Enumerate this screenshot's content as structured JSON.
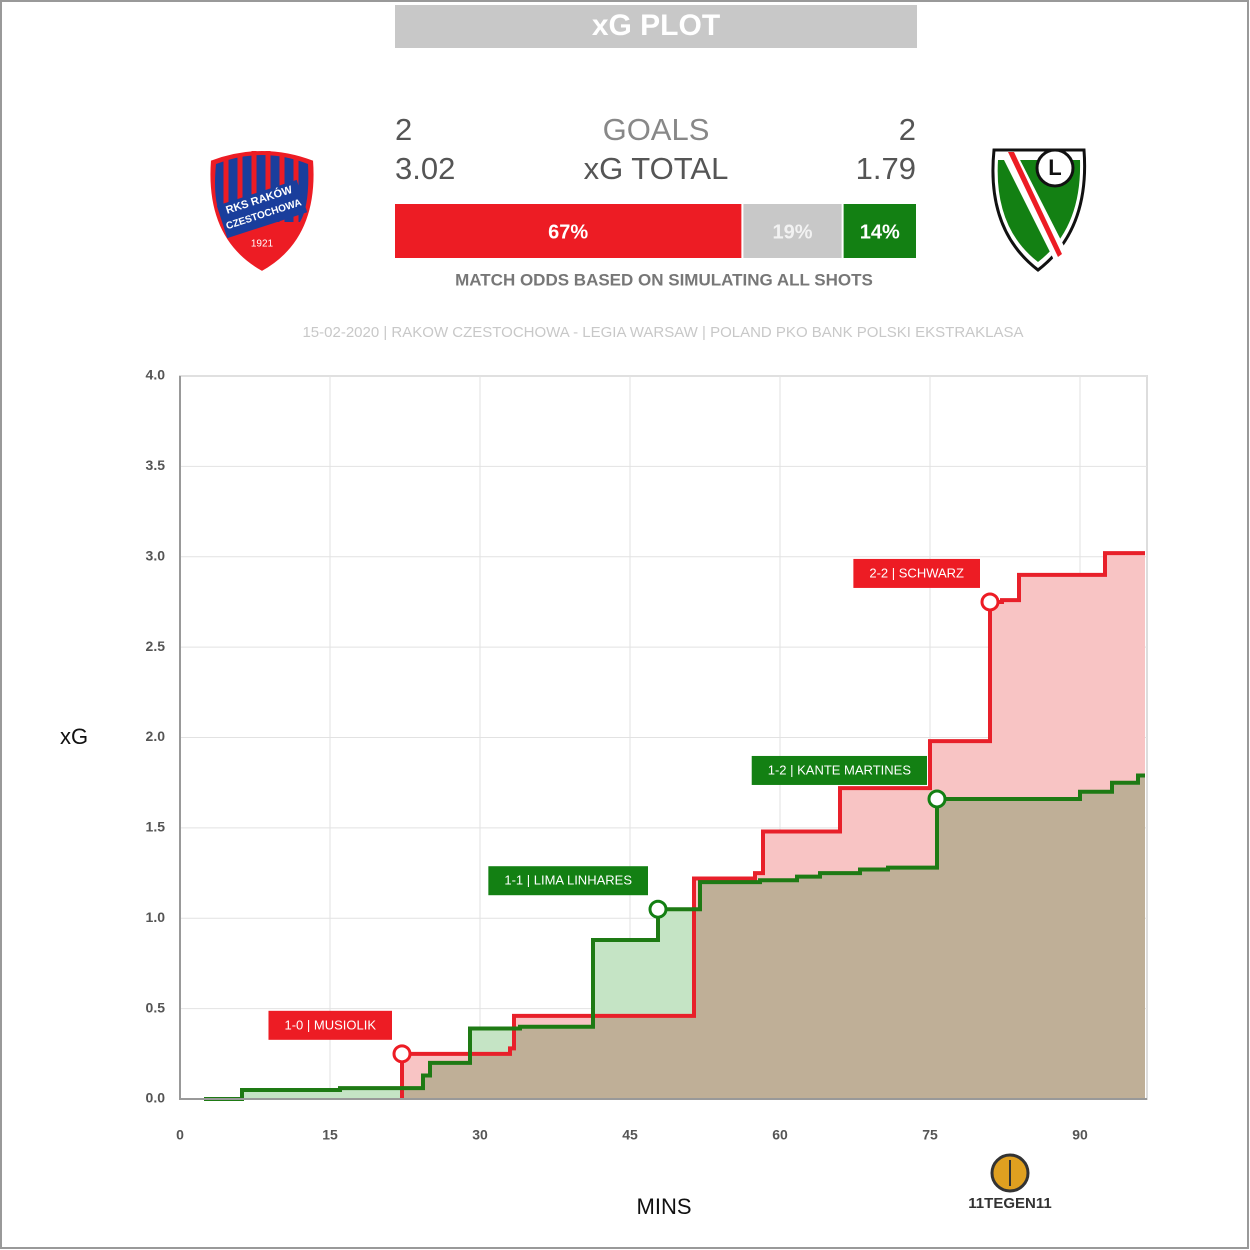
{
  "header": {
    "title": "xG PLOT",
    "home_goals": 2,
    "goals_label": "GOALS",
    "away_goals": 2,
    "home_xg": 3.02,
    "xg_label": "xG TOTAL",
    "away_xg": 1.79,
    "odds": {
      "values": [
        67,
        19,
        14
      ],
      "value_labels": [
        "67%",
        "19%",
        "14%"
      ],
      "colors": [
        "#ed1c24",
        "#c8c8c8",
        "#138013"
      ]
    },
    "odds_note": "MATCH ODDS BASED ON SIMULATING ALL SHOTS",
    "match_info": "15-02-2020 | RAKOW CZESTOCHOWA - LEGIA WARSAW | POLAND PKO BANK POLSKI EKSTRAKLASA"
  },
  "home_logo": {
    "name": "RKS RAKÓW",
    "city": "CZESTOCHOWA",
    "year": 1921
  },
  "away_logo": {
    "letter": "L"
  },
  "brand": "11TEGEN11",
  "chart_data": {
    "type": "step",
    "xlabel": "MINS",
    "ylabel": "xG",
    "xlim": [
      0,
      96.5
    ],
    "ylim": [
      0,
      4
    ],
    "xticks": [
      0,
      15,
      30,
      45,
      60,
      75,
      90
    ],
    "yticks": [
      {
        "value": 0,
        "label": "0.0"
      },
      0.5,
      {
        "value": 1,
        "label": "1.0"
      },
      1.5,
      {
        "value": 2,
        "label": "2.0"
      },
      2.5,
      {
        "value": 3,
        "label": "3.0"
      },
      3.5,
      {
        "value": 4,
        "label": "4.0"
      }
    ],
    "grid": true,
    "series": [
      {
        "color": "#e8202a",
        "fill": "#f8c4c4",
        "x": [
          22.2,
          33.0,
          33.4,
          51.4,
          57.5,
          58.3,
          66,
          75,
          81,
          82.2,
          83.9,
          92.5
        ],
        "values": [
          0.25,
          0.28,
          0.46,
          1.22,
          1.25,
          1.48,
          1.72,
          1.98,
          2.75,
          2.76,
          2.9,
          3.02
        ]
      },
      {
        "color": "#1e7a14",
        "fill": "#c5e4c5",
        "x": [
          2.4,
          6.2,
          16,
          24.3,
          25,
          29,
          34,
          41.3,
          47.8,
          52,
          58,
          61.7,
          64,
          68,
          70.8,
          75.7,
          90,
          93.2,
          95.8
        ],
        "values": [
          0,
          0.05,
          0.06,
          0.13,
          0.2,
          0.39,
          0.4,
          0.88,
          1.05,
          1.2,
          1.21,
          1.23,
          1.25,
          1.27,
          1.28,
          1.66,
          1.7,
          1.75,
          1.79
        ]
      }
    ],
    "annotations": [
      {
        "label": "1-0 | MUSIOLIK",
        "x": 22.2,
        "y": 0.25,
        "color": "#ed1c24"
      },
      {
        "label": "1-1 | LIMA LINHARES",
        "x": 47.8,
        "y": 1.05,
        "color": "#138013"
      },
      {
        "label": "1-2 | KANTE MARTINES",
        "x": 75.7,
        "y": 1.66,
        "color": "#138013"
      },
      {
        "label": "2-2 | SCHWARZ",
        "x": 81,
        "y": 2.75,
        "color": "#ed1c24"
      }
    ]
  }
}
